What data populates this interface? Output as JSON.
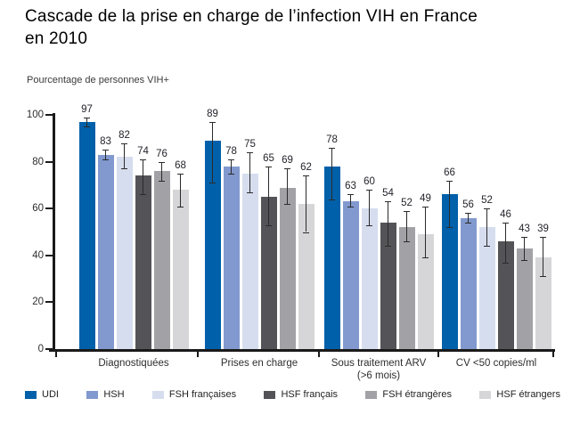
{
  "title": "Cascade de la prise en charge de l’infection VIH en France\nen 2010",
  "chart_data": {
    "type": "bar",
    "title": "Cascade de la prise en charge de l’infection VIH en France en 2010",
    "ylabel": "Pourcentage de personnes VIH+",
    "ylim": [
      0,
      100
    ],
    "yticks": [
      0,
      20,
      40,
      60,
      80,
      100
    ],
    "grid": false,
    "legend_position": "bottom",
    "categories": [
      "Diagnostiquées",
      "Prises en charge",
      "Sous traitement ARV\n(>6 mois)",
      "CV <50 copies/ml"
    ],
    "series": [
      {
        "name": "UDI",
        "color": "#0060a9",
        "values": [
          97,
          89,
          78,
          66
        ],
        "err_low": [
          95,
          71,
          64,
          52
        ],
        "err_high": [
          99,
          97,
          86,
          72
        ]
      },
      {
        "name": "HSH",
        "color": "#8199ce",
        "values": [
          83,
          78,
          63,
          56
        ],
        "err_low": [
          81,
          75,
          61,
          54
        ],
        "err_high": [
          85,
          81,
          66,
          58
        ]
      },
      {
        "name": "FSH françaises",
        "color": "#d6ddef",
        "values": [
          82,
          75,
          60,
          52
        ],
        "err_low": [
          77,
          67,
          53,
          44
        ],
        "err_high": [
          88,
          84,
          68,
          60
        ]
      },
      {
        "name": "HSF français",
        "color": "#545357",
        "values": [
          74,
          65,
          54,
          46
        ],
        "err_low": [
          66,
          53,
          44,
          37
        ],
        "err_high": [
          81,
          78,
          63,
          54
        ]
      },
      {
        "name": "FSH étrangères",
        "color": "#a2a2a6",
        "values": [
          76,
          69,
          52,
          43
        ],
        "err_low": [
          72,
          62,
          46,
          38
        ],
        "err_high": [
          80,
          77,
          59,
          48
        ]
      },
      {
        "name": "HSF étrangers",
        "color": "#d6d6d8",
        "values": [
          68,
          62,
          49,
          39
        ],
        "err_low": [
          61,
          50,
          39,
          31
        ],
        "err_high": [
          75,
          74,
          61,
          48
        ]
      }
    ]
  }
}
